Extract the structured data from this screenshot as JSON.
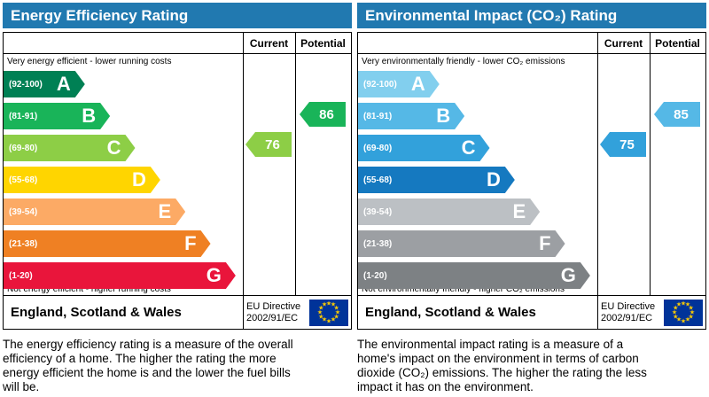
{
  "header_color": "#2179b0",
  "chart_data": [
    {
      "type": "bar",
      "title": "Energy Efficiency Rating",
      "columns": [
        "Current",
        "Potential"
      ],
      "top_note": "Very energy efficient - lower running costs",
      "bottom_note": "Not energy efficient - higher running costs",
      "bands": [
        {
          "letter": "A",
          "range": "(92-100)",
          "min": 92,
          "max": 100,
          "color": "#008054",
          "width": "34%"
        },
        {
          "letter": "B",
          "range": "(81-91)",
          "min": 81,
          "max": 91,
          "color": "#19b459",
          "width": "44.5%"
        },
        {
          "letter": "C",
          "range": "(69-80)",
          "min": 69,
          "max": 80,
          "color": "#8dce46",
          "width": "55%"
        },
        {
          "letter": "D",
          "range": "(55-68)",
          "min": 55,
          "max": 68,
          "color": "#ffd500",
          "width": "65.5%"
        },
        {
          "letter": "E",
          "range": "(39-54)",
          "min": 39,
          "max": 54,
          "color": "#fcaa65",
          "width": "76%"
        },
        {
          "letter": "F",
          "range": "(21-38)",
          "min": 21,
          "max": 38,
          "color": "#ef8023",
          "width": "86.5%"
        },
        {
          "letter": "G",
          "range": "(1-20)",
          "min": 1,
          "max": 20,
          "color": "#e9153b",
          "width": "97%"
        }
      ],
      "current": {
        "value": 76,
        "band": "C",
        "band_index": 2,
        "color": "#8dce46"
      },
      "potential": {
        "value": 86,
        "band": "B",
        "band_index": 1,
        "color": "#19b459"
      },
      "footer": {
        "region": "England, Scotland & Wales",
        "directive_line1": "EU Directive",
        "directive_line2": "2002/91/EC"
      },
      "description": "The energy efficiency rating is a measure of the overall efficiency of a home. The higher the rating the more energy efficient the home is and the lower the fuel bills will be."
    },
    {
      "type": "bar",
      "title": "Environmental Impact (CO₂) Rating",
      "columns": [
        "Current",
        "Potential"
      ],
      "top_note": "Very environmentally friendly - lower CO₂ emissions",
      "bottom_note": "Not environmentally friendly - higher CO₂ emissions",
      "bands": [
        {
          "letter": "A",
          "range": "(92-100)",
          "min": 92,
          "max": 100,
          "color": "#82cfee",
          "width": "34%"
        },
        {
          "letter": "B",
          "range": "(81-91)",
          "min": 81,
          "max": 91,
          "color": "#55b8e6",
          "width": "44.5%"
        },
        {
          "letter": "C",
          "range": "(69-80)",
          "min": 69,
          "max": 80,
          "color": "#32a1db",
          "width": "55%"
        },
        {
          "letter": "D",
          "range": "(55-68)",
          "min": 55,
          "max": 68,
          "color": "#1579c0",
          "width": "65.5%"
        },
        {
          "letter": "E",
          "range": "(39-54)",
          "min": 39,
          "max": 54,
          "color": "#bcc0c4",
          "width": "76%"
        },
        {
          "letter": "F",
          "range": "(21-38)",
          "min": 21,
          "max": 38,
          "color": "#9c9fa3",
          "width": "86.5%"
        },
        {
          "letter": "G",
          "range": "(1-20)",
          "min": 1,
          "max": 20,
          "color": "#7d8184",
          "width": "97%"
        }
      ],
      "current": {
        "value": 75,
        "band": "C",
        "band_index": 2,
        "color": "#32a1db"
      },
      "potential": {
        "value": 85,
        "band": "B",
        "band_index": 1,
        "color": "#55b8e6"
      },
      "footer": {
        "region": "England, Scotland & Wales",
        "directive_line1": "EU Directive",
        "directive_line2": "2002/91/EC"
      },
      "description": "The environmental impact rating is a measure of a home's impact on the environment in terms of carbon dioxide (CO₂) emissions. The higher the rating the less impact it has on the environment."
    }
  ]
}
